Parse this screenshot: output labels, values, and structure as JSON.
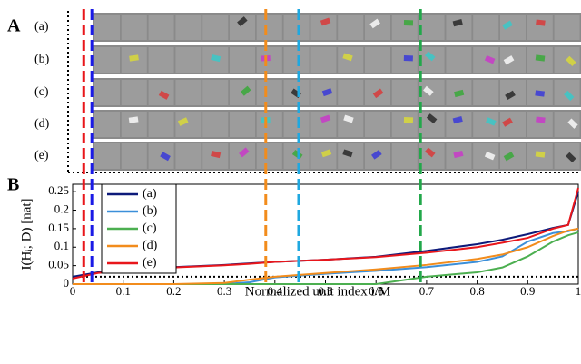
{
  "panel_a": {
    "label": "A",
    "rows": [
      "(a)",
      "(b)",
      "(c)",
      "(d)",
      "(e)"
    ]
  },
  "chart_data": {
    "type": "line",
    "panel_label": "B",
    "x_label": "Normalized unit index i/M",
    "y_label": "I(Hᵢ; D) [nat]",
    "x": [
      0,
      0.05,
      0.1,
      0.2,
      0.3,
      0.35,
      0.4,
      0.5,
      0.6,
      0.7,
      0.8,
      0.85,
      0.9,
      0.95,
      0.98,
      1
    ],
    "series": [
      {
        "name": "(a)",
        "color": "#0d1a7a",
        "values": [
          0.02,
          0.032,
          0.038,
          0.046,
          0.052,
          0.056,
          0.06,
          0.066,
          0.074,
          0.09,
          0.108,
          0.12,
          0.135,
          0.152,
          0.16,
          0.25
        ]
      },
      {
        "name": "(b)",
        "color": "#3b8fd9",
        "values": [
          0,
          0,
          0,
          0,
          0,
          0.005,
          0.018,
          0.028,
          0.036,
          0.046,
          0.06,
          0.075,
          0.115,
          0.138,
          0.143,
          0.15
        ]
      },
      {
        "name": "(c)",
        "color": "#4caf50",
        "values": [
          0,
          0,
          0,
          0,
          0,
          0,
          0,
          0,
          0,
          0.02,
          0.032,
          0.045,
          0.075,
          0.115,
          0.132,
          0.14
        ]
      },
      {
        "name": "(d)",
        "color": "#f28c1c",
        "values": [
          0,
          0,
          0,
          0,
          0.003,
          0.012,
          0.02,
          0.03,
          0.04,
          0.052,
          0.068,
          0.08,
          0.1,
          0.13,
          0.145,
          0.15
        ]
      },
      {
        "name": "(e)",
        "color": "#e8161b",
        "values": [
          0.015,
          0.03,
          0.036,
          0.045,
          0.051,
          0.055,
          0.06,
          0.066,
          0.073,
          0.085,
          0.1,
          0.112,
          0.125,
          0.15,
          0.16,
          0.26
        ]
      }
    ],
    "xlim": [
      0,
      1
    ],
    "xticks": [
      0,
      0.1,
      0.2,
      0.3,
      0.4,
      0.5,
      0.6,
      0.7,
      0.8,
      0.9,
      1
    ],
    "ylim": [
      0,
      0.27
    ],
    "yticks": [
      0,
      0.05,
      0.1,
      0.15,
      0.2,
      0.25
    ],
    "threshold": 0.02,
    "vlines": [
      {
        "x": 0.022,
        "color": "#e8161b"
      },
      {
        "x": 0.038,
        "color": "#1a1ae6"
      },
      {
        "x": 0.382,
        "color": "#f28c1c"
      },
      {
        "x": 0.447,
        "color": "#1fa8e0"
      },
      {
        "x": 0.688,
        "color": "#22a84a"
      }
    ],
    "legend": "upper left"
  }
}
